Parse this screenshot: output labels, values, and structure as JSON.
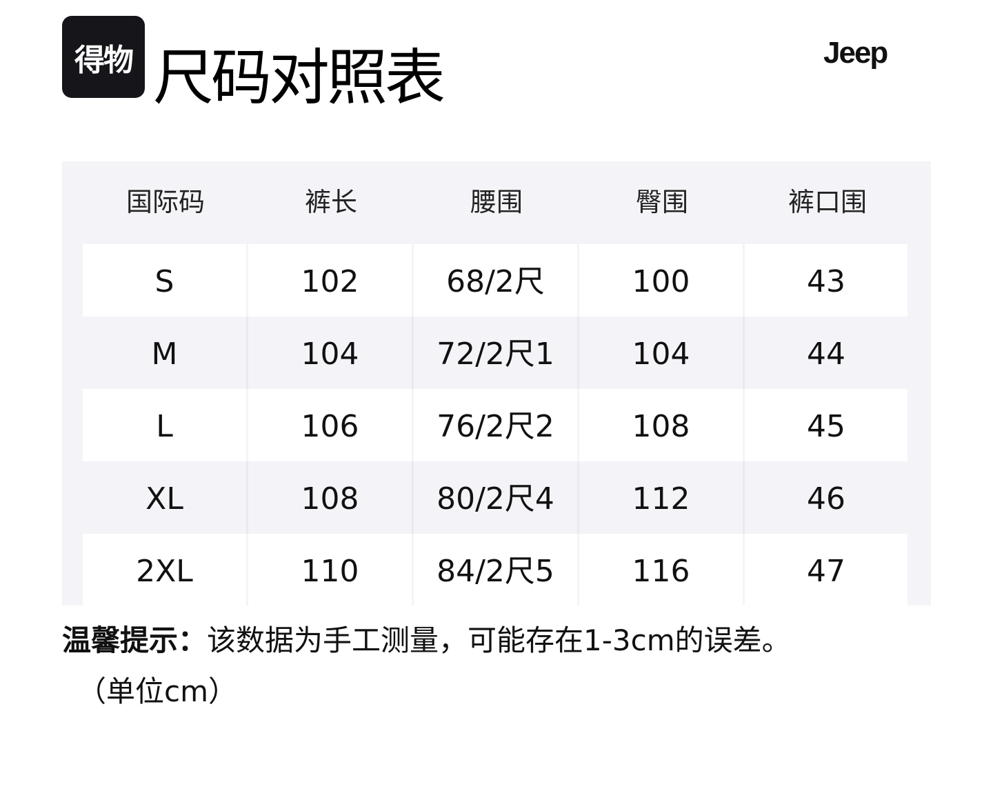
{
  "logo_text": "得物",
  "title": "尺码对照表",
  "brand": "Jeep",
  "table": {
    "headers": [
      "国际码",
      "裤长",
      "腰围",
      "臀围",
      "裤口围"
    ],
    "rows": [
      [
        "S",
        "102",
        "68/2尺",
        "100",
        "43"
      ],
      [
        "M",
        "104",
        "72/2尺1",
        "104",
        "44"
      ],
      [
        "L",
        "106",
        "76/2尺2",
        "108",
        "45"
      ],
      [
        "XL",
        "108",
        "80/2尺4",
        "112",
        "46"
      ],
      [
        "2XL",
        "110",
        "84/2尺5",
        "116",
        "47"
      ]
    ]
  },
  "note": {
    "label": "温馨提示：",
    "text": "该数据为手工测量，可能存在1-3cm的误差。",
    "unit": "（单位cm）"
  }
}
